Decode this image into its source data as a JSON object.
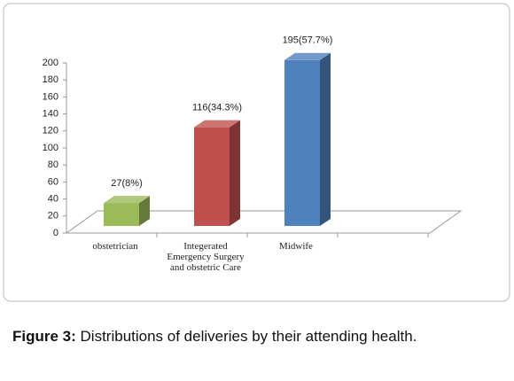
{
  "chart_data": {
    "type": "bar3d",
    "categories": [
      "obstetrician",
      "Integerated Emergency Surgery and obstetric Care",
      "Midwife",
      null
    ],
    "values": [
      27,
      116,
      195,
      null
    ],
    "value_labels": [
      "27(8%)",
      "116(34.3%)",
      "195(57.7%)",
      null
    ],
    "colors": [
      "#9bbb59",
      "#c0504d",
      "#4f81bd",
      null
    ],
    "ylim": [
      0,
      200
    ],
    "yticks": [
      0,
      20,
      40,
      60,
      80,
      100,
      120,
      140,
      160,
      180,
      200
    ]
  },
  "caption": {
    "label": "Figure 3:",
    "text": " Distributions of deliveries by their attending health."
  }
}
